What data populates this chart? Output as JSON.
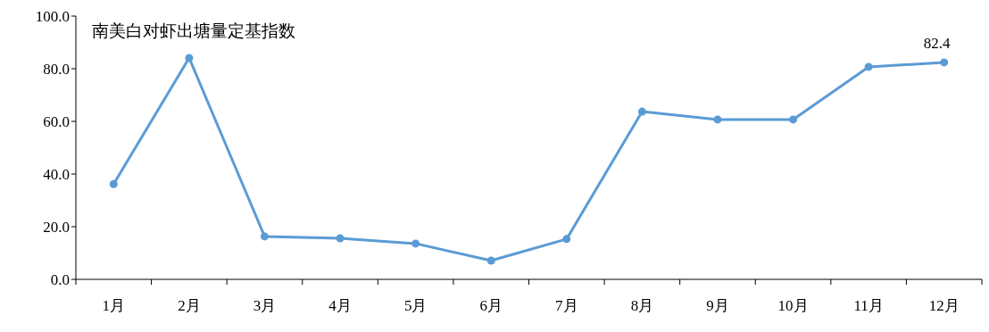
{
  "chart_data": {
    "type": "line",
    "title": "南美白对虾出塘量定基指数",
    "categories": [
      "1月",
      "2月",
      "3月",
      "4月",
      "5月",
      "6月",
      "7月",
      "8月",
      "9月",
      "10月",
      "11月",
      "12月"
    ],
    "series": [
      {
        "color": "#5b9bd5",
        "values": [
          36.2,
          84.1,
          16.3,
          15.6,
          13.6,
          7.1,
          15.3,
          63.7,
          60.7,
          60.7,
          80.7,
          82.4
        ],
        "value_labels": [
          null,
          null,
          null,
          null,
          null,
          null,
          null,
          null,
          null,
          null,
          null,
          "82.4"
        ]
      }
    ],
    "ylim": [
      0,
      100
    ],
    "yticks": [
      {
        "value": 0,
        "label": "0.0"
      },
      {
        "value": 20,
        "label": "20.0"
      },
      {
        "value": 40,
        "label": "40.0"
      },
      {
        "value": 60,
        "label": "60.0"
      },
      {
        "value": 80,
        "label": "80.0"
      },
      {
        "value": 100,
        "label": "100.0"
      }
    ],
    "grid": false,
    "marker": "circle",
    "line_style": "solid"
  }
}
